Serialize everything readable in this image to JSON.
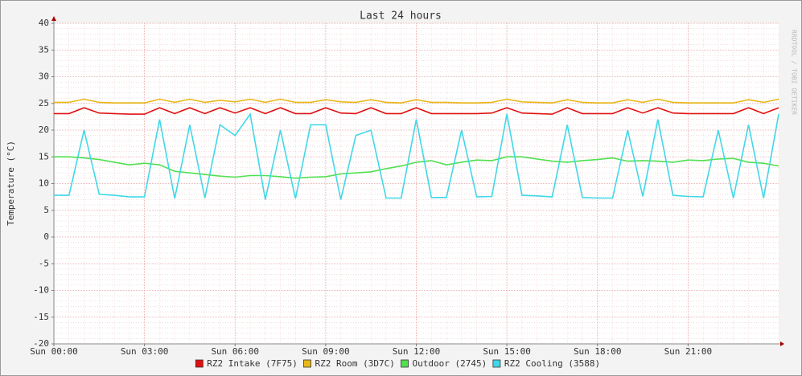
{
  "chart_data": {
    "type": "line",
    "title": "Last 24 hours",
    "y_label": "Temperature (°C)",
    "watermark": "RRDTOOL / TOBI OETIKER",
    "x": [
      0,
      0.5,
      1,
      1.5,
      2,
      2.5,
      3,
      3.5,
      4,
      4.5,
      5,
      5.5,
      6,
      6.5,
      7,
      7.5,
      8,
      8.5,
      9,
      9.5,
      10,
      10.5,
      11,
      11.5,
      12,
      12.5,
      13,
      13.5,
      14,
      14.5,
      15,
      15.5,
      16,
      16.5,
      17,
      17.5,
      18,
      18.5,
      19,
      19.5,
      20,
      20.5,
      21,
      21.5,
      22,
      22.5,
      23,
      23.5,
      24
    ],
    "xlim": [
      0,
      24
    ],
    "xticks": [
      {
        "value": 0,
        "label": "Sun 00:00"
      },
      {
        "value": 3,
        "label": "Sun 03:00"
      },
      {
        "value": 6,
        "label": "Sun 06:00"
      },
      {
        "value": 9,
        "label": "Sun 09:00"
      },
      {
        "value": 12,
        "label": "Sun 12:00"
      },
      {
        "value": 15,
        "label": "Sun 15:00"
      },
      {
        "value": 18,
        "label": "Sun 18:00"
      },
      {
        "value": 21,
        "label": "Sun 21:00"
      }
    ],
    "ylim": [
      -20,
      40
    ],
    "yticks": [
      -20,
      -15,
      -10,
      -5,
      0,
      5,
      10,
      15,
      20,
      25,
      30,
      35,
      40
    ],
    "grid": true,
    "series": [
      {
        "name": "RZ2 Intake (7F75)",
        "color": "#e01010",
        "values": [
          23.1,
          23.1,
          24.2,
          23.2,
          23.1,
          23.0,
          23.0,
          24.2,
          23.1,
          24.2,
          23.1,
          24.2,
          23.2,
          24.2,
          23.1,
          24.2,
          23.1,
          23.1,
          24.2,
          23.2,
          23.1,
          24.2,
          23.1,
          23.1,
          24.2,
          23.1,
          23.1,
          23.1,
          23.1,
          23.2,
          24.2,
          23.2,
          23.1,
          23.0,
          24.2,
          23.1,
          23.1,
          23.1,
          24.2,
          23.2,
          24.2,
          23.2,
          23.1,
          23.1,
          23.1,
          23.1,
          24.2,
          23.1,
          24.2
        ]
      },
      {
        "name": "RZ2 Room (3D7C)",
        "color": "#e8b818",
        "values": [
          25.2,
          25.2,
          25.8,
          25.2,
          25.1,
          25.1,
          25.1,
          25.8,
          25.2,
          25.8,
          25.2,
          25.6,
          25.3,
          25.8,
          25.2,
          25.8,
          25.2,
          25.2,
          25.7,
          25.3,
          25.2,
          25.7,
          25.2,
          25.1,
          25.7,
          25.2,
          25.2,
          25.1,
          25.1,
          25.2,
          25.8,
          25.3,
          25.2,
          25.1,
          25.7,
          25.2,
          25.1,
          25.1,
          25.7,
          25.2,
          25.8,
          25.2,
          25.1,
          25.1,
          25.1,
          25.1,
          25.7,
          25.2,
          25.8
        ]
      },
      {
        "name": "Outdoor (2745)",
        "color": "#50e050",
        "values": [
          15,
          15,
          14.8,
          14.5,
          14,
          13.5,
          13.8,
          13.5,
          12.3,
          12,
          11.7,
          11.4,
          11.2,
          11.5,
          11.5,
          11.3,
          11,
          11.2,
          11.3,
          11.8,
          12,
          12.2,
          12.8,
          13.3,
          14,
          14.3,
          13.5,
          14,
          14.4,
          14.3,
          15,
          15,
          14.6,
          14.2,
          14,
          14.3,
          14.5,
          14.8,
          14.2,
          14.3,
          14.2,
          14,
          14.4,
          14.3,
          14.6,
          14.7,
          14,
          13.8,
          13.3
        ]
      },
      {
        "name": "RZ2 Cooling (3588)",
        "color": "#40d8e8",
        "values": [
          7.8,
          7.8,
          20,
          8,
          7.8,
          7.5,
          7.5,
          22,
          7.2,
          21,
          7.3,
          21,
          19,
          23,
          7,
          20,
          7.2,
          21,
          21,
          7,
          19,
          20,
          7.3,
          7.3,
          22,
          7.4,
          7.4,
          20,
          7.5,
          7.6,
          23,
          7.8,
          7.7,
          7.5,
          21,
          7.4,
          7.3,
          7.3,
          20,
          7.6,
          22,
          7.8,
          7.6,
          7.5,
          20,
          7.3,
          21,
          7.3,
          23
        ]
      }
    ]
  }
}
